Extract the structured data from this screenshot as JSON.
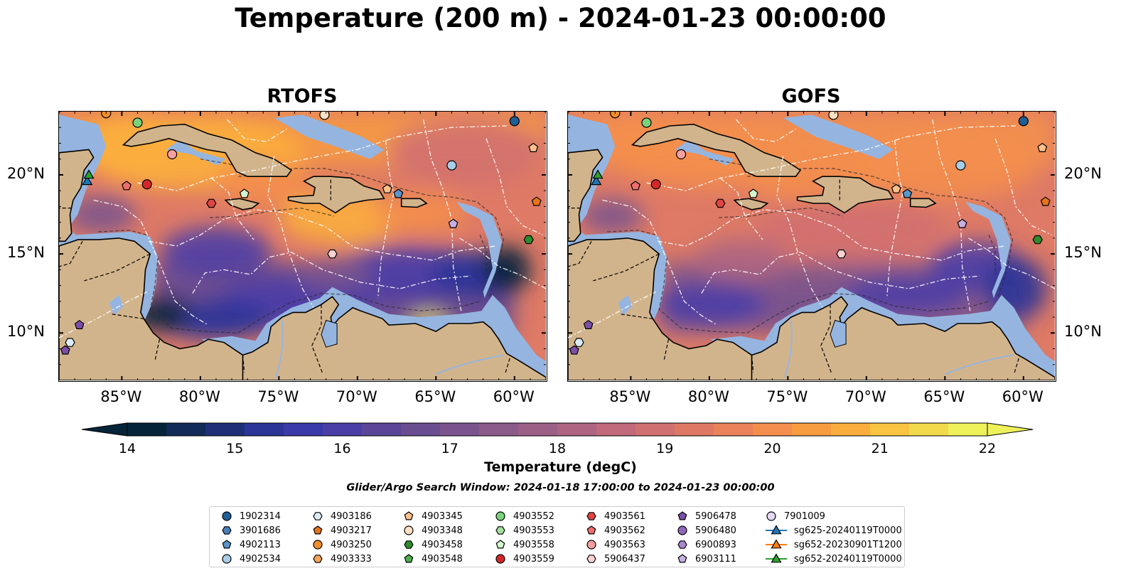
{
  "title": "Temperature (200 m) - 2024-01-23 00:00:00",
  "panels": [
    {
      "name": "rtofs",
      "title": "RTOFS"
    },
    {
      "name": "gofs",
      "title": "GOFS"
    }
  ],
  "axes": {
    "lon_ticks": [
      "85°W",
      "80°W",
      "75°W",
      "70°W",
      "65°W",
      "60°W"
    ],
    "lat_ticks": [
      "20°N",
      "15°N",
      "10°N"
    ],
    "lon_range": [
      -89,
      -58
    ],
    "lat_range": [
      7,
      24
    ]
  },
  "colorbar": {
    "label": "Temperature (degC)",
    "ticks": [
      "14",
      "15",
      "16",
      "17",
      "18",
      "19",
      "20",
      "21",
      "22"
    ],
    "range": [
      14,
      22
    ],
    "extend": "both",
    "colors": [
      "#05243a",
      "#122a57",
      "#1e2f78",
      "#2b3597",
      "#3a3aa8",
      "#4b3fa6",
      "#5a4597",
      "#6a4d91",
      "#7b548d",
      "#8b5b8a",
      "#9c6087",
      "#ad6582",
      "#c06a7b",
      "#d07070",
      "#de7865",
      "#ea825a",
      "#f38e4c",
      "#f89c40",
      "#fbae3d",
      "#f8c442",
      "#f2d94b",
      "#eef15a"
    ]
  },
  "search_window": "Glider/Argo Search Window: 2024-01-18 17:00:00 to 2024-01-23 00:00:00",
  "legend": {
    "items": [
      {
        "label": "1902314",
        "marker": "circle",
        "color": "#1f5f96"
      },
      {
        "label": "3901686",
        "marker": "hexagon",
        "color": "#4a7fb5"
      },
      {
        "label": "4902113",
        "marker": "pentagon",
        "color": "#5a95cc"
      },
      {
        "label": "4902534",
        "marker": "circle",
        "color": "#a9cde8"
      },
      {
        "label": "4903186",
        "marker": "hexagon",
        "color": "#dcecf7"
      },
      {
        "label": "4903217",
        "marker": "pentagon",
        "color": "#e8741a"
      },
      {
        "label": "4903250",
        "marker": "circle",
        "color": "#f28e2b"
      },
      {
        "label": "4903333",
        "marker": "hexagon",
        "color": "#f7a35c"
      },
      {
        "label": "4903345",
        "marker": "pentagon",
        "color": "#fbc08c"
      },
      {
        "label": "4903348",
        "marker": "circle",
        "color": "#fde0c5"
      },
      {
        "label": "4903458",
        "marker": "hexagon",
        "color": "#2e8b2e"
      },
      {
        "label": "4903548",
        "marker": "pentagon",
        "color": "#4caf50"
      },
      {
        "label": "4903552",
        "marker": "circle",
        "color": "#7bd17b"
      },
      {
        "label": "4903553",
        "marker": "hexagon",
        "color": "#a5e0a0"
      },
      {
        "label": "4903558",
        "marker": "pentagon",
        "color": "#d5f5d0"
      },
      {
        "label": "4903559",
        "marker": "circle",
        "color": "#d62728"
      },
      {
        "label": "4903561",
        "marker": "hexagon",
        "color": "#e04545"
      },
      {
        "label": "4903562",
        "marker": "pentagon",
        "color": "#ee6e6e"
      },
      {
        "label": "4903563",
        "marker": "circle",
        "color": "#f4a0a0"
      },
      {
        "label": "5906437",
        "marker": "hexagon",
        "color": "#fad2d2"
      },
      {
        "label": "5906478",
        "marker": "pentagon",
        "color": "#7b4fa8"
      },
      {
        "label": "5906480",
        "marker": "circle",
        "color": "#9467bd"
      },
      {
        "label": "6900893",
        "marker": "hexagon",
        "color": "#a988d0"
      },
      {
        "label": "6903111",
        "marker": "pentagon",
        "color": "#c7b0e3"
      },
      {
        "label": "7901009",
        "marker": "circle",
        "color": "#e5d8f3"
      },
      {
        "label": "sg625-20240119T0000",
        "marker": "triangle-line",
        "color": "#1f77b4"
      },
      {
        "label": "sg652-20230901T1200",
        "marker": "triangle-line",
        "color": "#ff7f0e"
      },
      {
        "label": "sg652-20240119T0000",
        "marker": "triangle-line",
        "color": "#2ca02c"
      }
    ]
  },
  "floats": [
    {
      "lon": -86,
      "lat": 23.9,
      "marker": "circle",
      "color": "#f28e2b"
    },
    {
      "lon": -84,
      "lat": 23.3,
      "marker": "circle",
      "color": "#7bd17b"
    },
    {
      "lon": -81.8,
      "lat": 21.3,
      "marker": "circle",
      "color": "#f4a0a0"
    },
    {
      "lon": -84.7,
      "lat": 19.3,
      "marker": "pentagon",
      "color": "#ee6e6e"
    },
    {
      "lon": -83.4,
      "lat": 19.4,
      "marker": "circle",
      "color": "#d62728"
    },
    {
      "lon": -79.3,
      "lat": 18.2,
      "marker": "hexagon",
      "color": "#e04545"
    },
    {
      "lon": -77.2,
      "lat": 18.8,
      "marker": "pentagon",
      "color": "#d5f5d0"
    },
    {
      "lon": -72.1,
      "lat": 23.8,
      "marker": "circle",
      "color": "#fde0c5"
    },
    {
      "lon": -60,
      "lat": 23.4,
      "marker": "circle",
      "color": "#1f5f96"
    },
    {
      "lon": -58.8,
      "lat": 21.7,
      "marker": "pentagon",
      "color": "#fbc08c"
    },
    {
      "lon": -64,
      "lat": 20.6,
      "marker": "circle",
      "color": "#a9cde8"
    },
    {
      "lon": -68.1,
      "lat": 19.1,
      "marker": "pentagon",
      "color": "#fbc08c"
    },
    {
      "lon": -67.4,
      "lat": 18.8,
      "marker": "pentagon",
      "color": "#5a95cc"
    },
    {
      "lon": -58.6,
      "lat": 18.3,
      "marker": "pentagon",
      "color": "#e8741a"
    },
    {
      "lon": -63.9,
      "lat": 16.9,
      "marker": "pentagon",
      "color": "#c7b0e3"
    },
    {
      "lon": -59.1,
      "lat": 15.9,
      "marker": "hexagon",
      "color": "#2e8b2e"
    },
    {
      "lon": -71.6,
      "lat": 15,
      "marker": "hexagon",
      "color": "#fad2d2"
    },
    {
      "lon": -87.7,
      "lat": 10.5,
      "marker": "pentagon",
      "color": "#7b4fa8"
    },
    {
      "lon": -88.3,
      "lat": 9.4,
      "marker": "hexagon",
      "color": "#dcecf7"
    },
    {
      "lon": -88.6,
      "lat": 8.9,
      "marker": "pentagon",
      "color": "#7b4fa8"
    },
    {
      "lon": -87.2,
      "lat": 19.6,
      "marker": "triangle",
      "color": "#1f77b4"
    },
    {
      "lon": -87.1,
      "lat": 20,
      "marker": "triangle",
      "color": "#2ca02c"
    }
  ]
}
